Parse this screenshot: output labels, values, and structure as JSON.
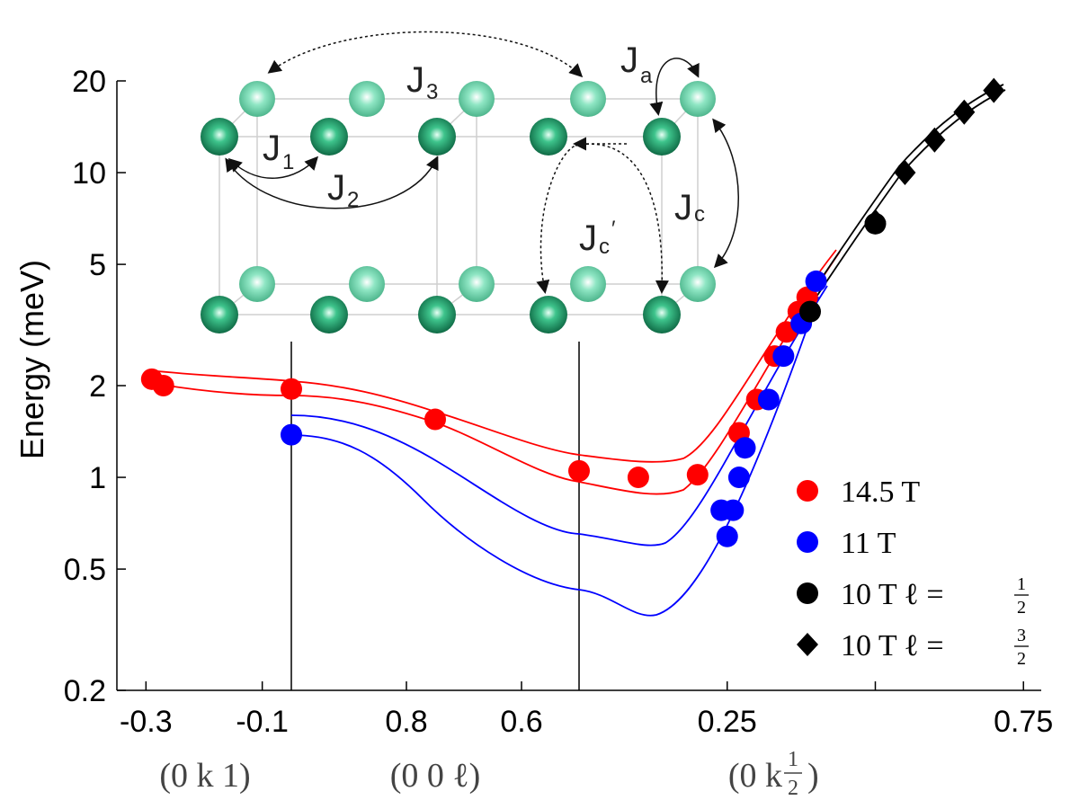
{
  "chart_data": {
    "type": "scatter",
    "title": "",
    "ylabel": "Energy (meV)",
    "yscale": "log",
    "ylim": [
      0.2,
      24
    ],
    "yticks": [
      "20",
      "10",
      "5",
      "2",
      "1",
      "0.5",
      "0.2"
    ],
    "xticks": [
      "-0.3",
      "-0.1",
      "0.8",
      "0.6",
      "0.25",
      "0.75"
    ],
    "segments": [
      {
        "label": "(0 k 1)",
        "range": [
          -0.35,
          -0.05
        ]
      },
      {
        "label": "(0 0 ℓ)",
        "range": [
          1.0,
          0.5
        ]
      },
      {
        "label": "(0 k ½)",
        "range": [
          0.0,
          0.78
        ]
      }
    ],
    "series": [
      {
        "name": "14.5 T",
        "color": "#ff0000",
        "marker": "circle",
        "points": [
          {
            "seg": 0,
            "x": -0.29,
            "y": 2.1
          },
          {
            "seg": 0,
            "x": -0.27,
            "y": 2.0
          },
          {
            "seg": 0,
            "x": -0.05,
            "y": 1.95
          },
          {
            "seg": 1,
            "x": 0.75,
            "y": 1.55
          },
          {
            "seg": 1,
            "x": 0.5,
            "y": 1.05
          },
          {
            "seg": 2,
            "x": 0.1,
            "y": 1.0
          },
          {
            "seg": 2,
            "x": 0.2,
            "y": 1.02
          },
          {
            "seg": 2,
            "x": 0.27,
            "y": 1.4
          },
          {
            "seg": 2,
            "x": 0.3,
            "y": 1.8
          },
          {
            "seg": 2,
            "x": 0.33,
            "y": 2.5
          },
          {
            "seg": 2,
            "x": 0.35,
            "y": 3.0
          },
          {
            "seg": 2,
            "x": 0.37,
            "y": 3.5
          },
          {
            "seg": 2,
            "x": 0.385,
            "y": 3.9
          }
        ]
      },
      {
        "name": "11 T",
        "color": "#0000ff",
        "marker": "circle",
        "points": [
          {
            "seg": 0,
            "x": -0.05,
            "y": 1.38
          },
          {
            "seg": 2,
            "x": 0.24,
            "y": 0.78
          },
          {
            "seg": 2,
            "x": 0.25,
            "y": 0.64
          },
          {
            "seg": 2,
            "x": 0.26,
            "y": 0.78
          },
          {
            "seg": 2,
            "x": 0.27,
            "y": 1.0
          },
          {
            "seg": 2,
            "x": 0.28,
            "y": 1.25
          },
          {
            "seg": 2,
            "x": 0.32,
            "y": 1.8
          },
          {
            "seg": 2,
            "x": 0.345,
            "y": 2.5
          },
          {
            "seg": 2,
            "x": 0.375,
            "y": 3.2
          },
          {
            "seg": 2,
            "x": 0.4,
            "y": 4.4
          }
        ]
      },
      {
        "name": "10 T ℓ = ½",
        "color": "#000000",
        "marker": "circle",
        "points": [
          {
            "seg": 2,
            "x": 0.39,
            "y": 3.5
          },
          {
            "seg": 2,
            "x": 0.5,
            "y": 6.8
          }
        ]
      },
      {
        "name": "10 T ℓ = ³⁄₂",
        "color": "#000000",
        "marker": "diamond",
        "points": [
          {
            "seg": 2,
            "x": 0.5,
            "y": 6.9
          },
          {
            "seg": 2,
            "x": 0.55,
            "y": 10.0
          },
          {
            "seg": 2,
            "x": 0.6,
            "y": 12.8
          },
          {
            "seg": 2,
            "x": 0.65,
            "y": 15.8
          },
          {
            "seg": 2,
            "x": 0.7,
            "y": 18.6
          }
        ]
      }
    ],
    "legend": {
      "placement": "bottom-right",
      "entries": [
        "14.5 T",
        "11 T",
        "10 T ℓ = ½",
        "10 T ℓ = ³⁄₂"
      ]
    }
  },
  "legend_text": {
    "e1": "14.5 T",
    "e2": "11 T",
    "e3_prefix": "10 T ℓ = ",
    "e3_num": "1",
    "e3_den": "2",
    "e4_prefix": "10 T ℓ = ",
    "e4_num": "3",
    "e4_den": "2"
  },
  "segment_labels": {
    "s1": "(0 k 1)",
    "s2": "(0 0 ℓ)",
    "s3_prefix": "(0 k ",
    "s3_num": "1",
    "s3_den": "2",
    "s3_suffix": ")"
  },
  "inset": {
    "labels": {
      "J3": "J",
      "J3_sub": "3",
      "Ja": "J",
      "Ja_sub": "a",
      "J1": "J",
      "J1_sub": "1",
      "J2": "J",
      "J2_sub": "2",
      "Jc": "J",
      "Jc_sub": "c",
      "Jcp": "J",
      "Jcp_sub": "c",
      "Jcp_prime": "′"
    },
    "atom_color_light": "#7fdcb7",
    "atom_color_dark": "#1f9e6a"
  }
}
